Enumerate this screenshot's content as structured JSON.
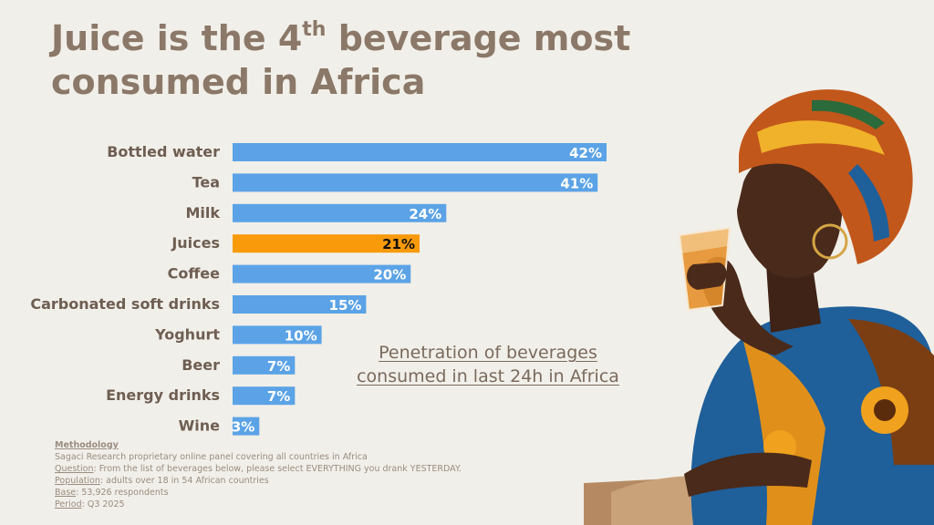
{
  "title": {
    "part1": "Juice is the 4",
    "sup": "th",
    "part2": " beverage most consumed in Africa"
  },
  "caption": "Penetration of beverages consumed in last 24h in Africa",
  "methodology": {
    "heading": "Methodology",
    "panel": "Sagaci Research proprietary online panel covering all countries in Africa",
    "question_label": "Question",
    "question": ": From the list of beverages below, please select EVERYTHING you drank YESTERDAY.",
    "population_label": "Population",
    "population": ": adults over 18 in 54 African countries",
    "base_label": "Base",
    "base": ": 53,926 respondents",
    "period_label": "Period",
    "period": ": Q3 2025"
  },
  "colors": {
    "bar": "#5ba3e6",
    "highlight": "#f89a0a",
    "label": "#6e5e52",
    "value_text": "#ffffff",
    "highlight_value_text": "#111111"
  },
  "chart_data": {
    "type": "bar",
    "orientation": "horizontal",
    "categories": [
      "Bottled water",
      "Tea",
      "Milk",
      "Juices",
      "Coffee",
      "Carbonated soft drinks",
      "Yoghurt",
      "Beer",
      "Energy drinks",
      "Wine"
    ],
    "values": [
      42,
      41,
      24,
      21,
      20,
      15,
      10,
      7,
      7,
      3
    ],
    "data_labels": [
      "42%",
      "41%",
      "24%",
      "21%",
      "20%",
      "15%",
      "10%",
      "7%",
      "7%",
      "3%"
    ],
    "highlighted": "Juices",
    "unit": "%",
    "xlim": [
      0,
      42
    ],
    "grid": false,
    "legend": "none"
  }
}
